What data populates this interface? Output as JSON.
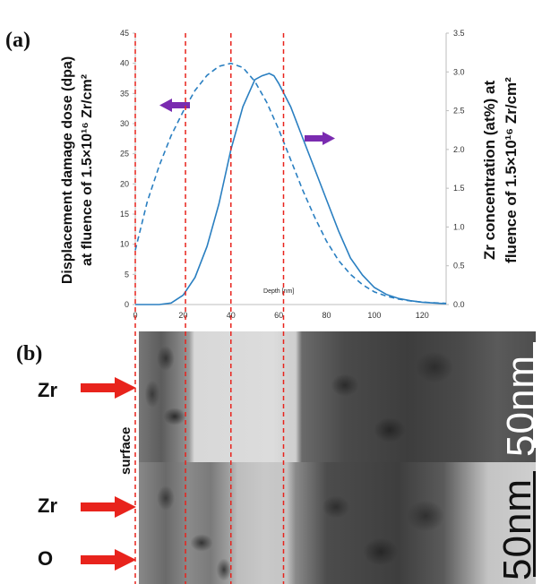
{
  "panel_a_label": "(a)",
  "panel_b_label": "(b)",
  "chart_data": {
    "type": "line",
    "xlabel": "Depth [nm]",
    "ylabel_left": [
      "Displacement damage dose (dpa)",
      "at fluence  of 1.5×10¹⁶ Zr/cm²"
    ],
    "ylabel_right": [
      "Zr concentration (at%) at",
      "fluence of 1.5×10¹⁶ Zr/cm²"
    ],
    "xlim": [
      0,
      130
    ],
    "ylim_left": [
      0,
      45
    ],
    "ylim_right": [
      0,
      3.5
    ],
    "x_ticks": [
      "0",
      "20",
      "40",
      "60",
      "80",
      "100",
      "120"
    ],
    "x_tick_values": [
      0,
      20,
      40,
      60,
      80,
      100,
      120
    ],
    "y_left_ticks": [
      "0",
      "5",
      "10",
      "15",
      "20",
      "25",
      "30",
      "35",
      "40",
      "45"
    ],
    "y_left_tick_values": [
      0,
      5,
      10,
      15,
      20,
      25,
      30,
      35,
      40,
      45
    ],
    "y_right_ticks": [
      "0.0",
      "0.5",
      "1.0",
      "1.5",
      "2.0",
      "2.5",
      "3.0",
      "3.5"
    ],
    "y_right_tick_values": [
      0,
      0.5,
      1.0,
      1.5,
      2.0,
      2.5,
      3.0,
      3.5
    ],
    "reference_lines_x": [
      0,
      21,
      40,
      62
    ],
    "series": [
      {
        "style": "dashed",
        "axis": "left",
        "color": "#2a7fc1",
        "x": [
          0,
          5,
          10,
          15,
          20,
          25,
          30,
          35,
          40,
          45,
          50,
          55,
          60,
          65,
          70,
          75,
          80,
          85,
          90,
          95,
          100,
          105,
          110,
          115,
          120,
          125,
          130
        ],
        "y": [
          9,
          17,
          23,
          28,
          32,
          35.5,
          38,
          39.5,
          40,
          39.3,
          37,
          33.5,
          29,
          24,
          19,
          14.5,
          10.5,
          7.3,
          5,
          3.3,
          2.1,
          1.4,
          0.9,
          0.6,
          0.4,
          0.3,
          0.2
        ]
      },
      {
        "style": "solid",
        "axis": "right",
        "color": "#2a7fc1",
        "x": [
          0,
          5,
          10,
          15,
          20,
          25,
          30,
          35,
          40,
          45,
          50,
          53,
          56,
          58,
          60,
          65,
          70,
          75,
          80,
          85,
          90,
          95,
          100,
          105,
          110,
          115,
          120,
          125,
          130
        ],
        "y": [
          0,
          0,
          0,
          0.02,
          0.12,
          0.35,
          0.75,
          1.3,
          2.0,
          2.55,
          2.9,
          2.95,
          2.98,
          2.95,
          2.85,
          2.55,
          2.15,
          1.75,
          1.35,
          0.95,
          0.6,
          0.38,
          0.22,
          0.13,
          0.08,
          0.05,
          0.03,
          0.02,
          0.01
        ]
      }
    ],
    "arrows": [
      {
        "points_to": "left",
        "color": "#7a2bb0"
      },
      {
        "points_to": "right",
        "color": "#7a2bb0"
      }
    ]
  },
  "tem_top": {
    "scale_label": "50nm",
    "element_label": "Zr"
  },
  "tem_bottom": {
    "scale_label": "50nm",
    "element_labels": [
      "Zr",
      "O"
    ]
  },
  "surface_label": "surface",
  "colors": {
    "curve": "#2a7fc1",
    "arrow_red": "#e8231c",
    "dashline_red": "#e8231c",
    "arrow_purple": "#7a2bb0"
  }
}
